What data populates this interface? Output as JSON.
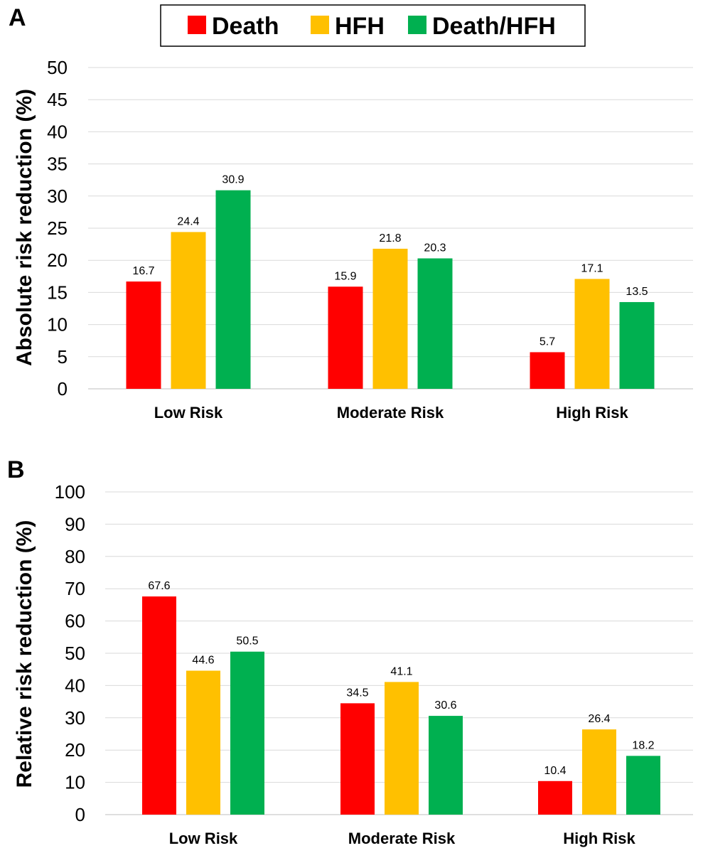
{
  "legend": {
    "entries": [
      {
        "label": "Death",
        "color": "#ff0000"
      },
      {
        "label": "HFH",
        "color": "#ffc000"
      },
      {
        "label": "Death/HFH",
        "color": "#00b050"
      }
    ]
  },
  "chart_data": [
    {
      "panel": "A",
      "type": "bar",
      "ylabel": "Absolute risk reduction (%)",
      "xlabel": "",
      "ylim": [
        0,
        50
      ],
      "yticks": [
        "0",
        "5",
        "10",
        "15",
        "20",
        "25",
        "30",
        "35",
        "40",
        "45",
        "50"
      ],
      "grid": true,
      "categories": [
        "Low Risk",
        "Moderate Risk",
        "High Risk"
      ],
      "series": [
        {
          "name": "Death",
          "color": "#ff0000",
          "values": [
            16.7,
            15.9,
            5.7
          ],
          "labels": [
            "16.7",
            "15.9",
            "5.7"
          ]
        },
        {
          "name": "HFH",
          "color": "#ffc000",
          "values": [
            24.4,
            21.8,
            17.1
          ],
          "labels": [
            "24.4",
            "21.8",
            "17.1"
          ]
        },
        {
          "name": "Death/HFH",
          "color": "#00b050",
          "values": [
            30.9,
            20.3,
            13.5
          ],
          "labels": [
            "30.9",
            "20.3",
            "13.5"
          ]
        }
      ]
    },
    {
      "panel": "B",
      "type": "bar",
      "ylabel": "Relative risk reduction (%)",
      "xlabel": "",
      "ylim": [
        0,
        100
      ],
      "yticks": [
        "0",
        "10",
        "20",
        "30",
        "40",
        "50",
        "60",
        "70",
        "80",
        "90",
        "100"
      ],
      "grid": true,
      "categories": [
        "Low Risk",
        "Moderate Risk",
        "High Risk"
      ],
      "series": [
        {
          "name": "Death",
          "color": "#ff0000",
          "values": [
            67.6,
            34.5,
            10.4
          ],
          "labels": [
            "67.6",
            "34.5",
            "10.4"
          ]
        },
        {
          "name": "HFH",
          "color": "#ffc000",
          "values": [
            44.6,
            41.1,
            26.4
          ],
          "labels": [
            "44.6",
            "41.1",
            "26.4"
          ]
        },
        {
          "name": "Death/HFH",
          "color": "#00b050",
          "values": [
            50.5,
            30.6,
            18.2
          ],
          "labels": [
            "50.5",
            "30.6",
            "18.2"
          ]
        }
      ]
    }
  ]
}
